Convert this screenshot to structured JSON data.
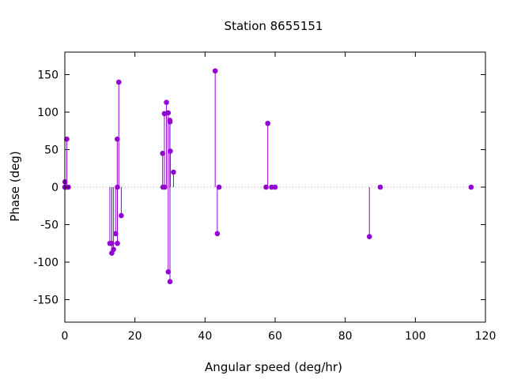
{
  "chart_data": {
    "type": "scatter",
    "title": "Station 8655151",
    "xlabel": "Angular speed (deg/hr)",
    "ylabel": "Phase (deg)",
    "xlim": [
      0,
      120
    ],
    "ylim": [
      -180,
      180
    ],
    "xticks": [
      0,
      20,
      40,
      60,
      80,
      100,
      120
    ],
    "yticks": [
      -150,
      -100,
      -50,
      0,
      50,
      100,
      150
    ],
    "grid": false,
    "zero_line": true,
    "color": "#9400d3",
    "style": "stem",
    "points": [
      {
        "x": 0.0,
        "y": 0.0
      },
      {
        "x": 0.04,
        "y": 7.0
      },
      {
        "x": 0.08,
        "y": 0.0
      },
      {
        "x": 0.5,
        "y": 0.0
      },
      {
        "x": 0.55,
        "y": 64.0
      },
      {
        "x": 1.0,
        "y": 0.0
      },
      {
        "x": 12.85,
        "y": -75.0
      },
      {
        "x": 13.4,
        "y": -75.0
      },
      {
        "x": 13.4,
        "y": -88.0
      },
      {
        "x": 13.9,
        "y": -83.0
      },
      {
        "x": 14.5,
        "y": -62.0
      },
      {
        "x": 14.96,
        "y": 64.0
      },
      {
        "x": 15.0,
        "y": 0.0
      },
      {
        "x": 15.0,
        "y": -75.0
      },
      {
        "x": 15.4,
        "y": 140.0
      },
      {
        "x": 16.1,
        "y": -38.0
      },
      {
        "x": 27.9,
        "y": 45.0
      },
      {
        "x": 28.0,
        "y": 0.0
      },
      {
        "x": 28.4,
        "y": 98.0
      },
      {
        "x": 28.5,
        "y": 0.0
      },
      {
        "x": 29.0,
        "y": 113.0
      },
      {
        "x": 29.5,
        "y": -113.0
      },
      {
        "x": 29.5,
        "y": 99.0
      },
      {
        "x": 29.96,
        "y": 89.0
      },
      {
        "x": 30.0,
        "y": -126.0
      },
      {
        "x": 30.0,
        "y": 87.0
      },
      {
        "x": 30.1,
        "y": 48.0
      },
      {
        "x": 31.0,
        "y": 20.0
      },
      {
        "x": 42.9,
        "y": 155.0
      },
      {
        "x": 43.5,
        "y": -62.0
      },
      {
        "x": 44.0,
        "y": 0.0
      },
      {
        "x": 57.4,
        "y": 0.0
      },
      {
        "x": 57.9,
        "y": 85.0
      },
      {
        "x": 59.0,
        "y": 0.0
      },
      {
        "x": 60.0,
        "y": 0.0
      },
      {
        "x": 86.9,
        "y": -66.0
      },
      {
        "x": 90.0,
        "y": 0.0
      },
      {
        "x": 115.9,
        "y": 0.0
      }
    ]
  }
}
